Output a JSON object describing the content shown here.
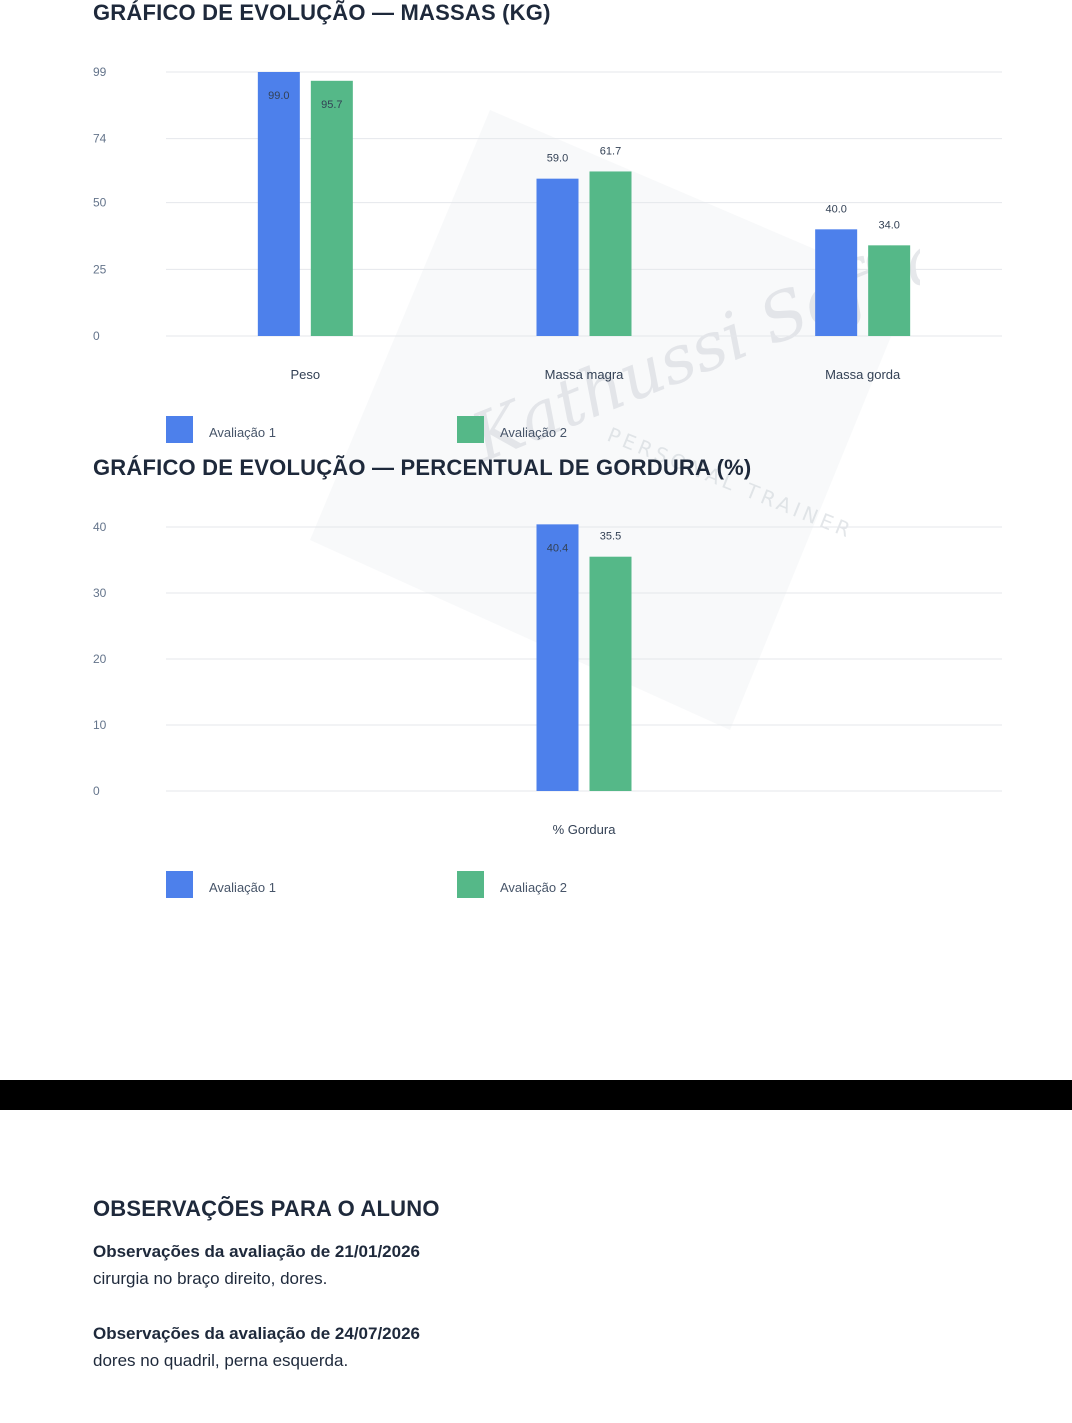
{
  "charts": {
    "mass": {
      "title": "GRÁFICO DE EVOLUÇÃO — MASSAS (KG)"
    },
    "fat": {
      "title": "GRÁFICO DE EVOLUÇÃO — PERCENTUAL DE GORDURA (%)"
    }
  },
  "watermark": {
    "text": "Kathussi Soffiatti",
    "subtitle": "PERSONAL TRAINER"
  },
  "observations": {
    "title": "OBSERVAÇÕES PARA O ALUNO",
    "entries": [
      {
        "heading": "Observações da avaliação de 21/01/2026",
        "text": "cirurgia no braço direito, dores."
      },
      {
        "heading": "Observações da avaliação de 24/07/2026",
        "text": "dores no quadril, perna esquerda."
      }
    ]
  },
  "colors": {
    "series1": "#4d80eb",
    "series2": "#55b888",
    "grid": "#e5e7eb",
    "title": "#1e293b"
  },
  "chart_data": [
    {
      "type": "bar",
      "title": "GRÁFICO DE EVOLUÇÃO — MASSAS (KG)",
      "categories": [
        "Peso",
        "Massa magra",
        "Massa gorda"
      ],
      "series": [
        {
          "name": "Avaliação 1",
          "values": [
            99.0,
            59.0,
            40.0
          ]
        },
        {
          "name": "Avaliação 2",
          "values": [
            95.7,
            61.7,
            34.0
          ]
        }
      ],
      "yticks": [
        0,
        25,
        50,
        74,
        99
      ],
      "ylim": [
        0,
        99
      ],
      "grid": true,
      "legend": "bottom-left",
      "xlabel": "",
      "ylabel": ""
    },
    {
      "type": "bar",
      "title": "GRÁFICO DE EVOLUÇÃO — PERCENTUAL DE GORDURA (%)",
      "categories": [
        "% Gordura"
      ],
      "series": [
        {
          "name": "Avaliação 1",
          "values": [
            40.4
          ]
        },
        {
          "name": "Avaliação 2",
          "values": [
            35.5
          ]
        }
      ],
      "yticks": [
        0,
        10,
        20,
        30,
        40
      ],
      "ylim": [
        0,
        40
      ],
      "grid": true,
      "legend": "bottom-left",
      "xlabel": "",
      "ylabel": ""
    }
  ]
}
